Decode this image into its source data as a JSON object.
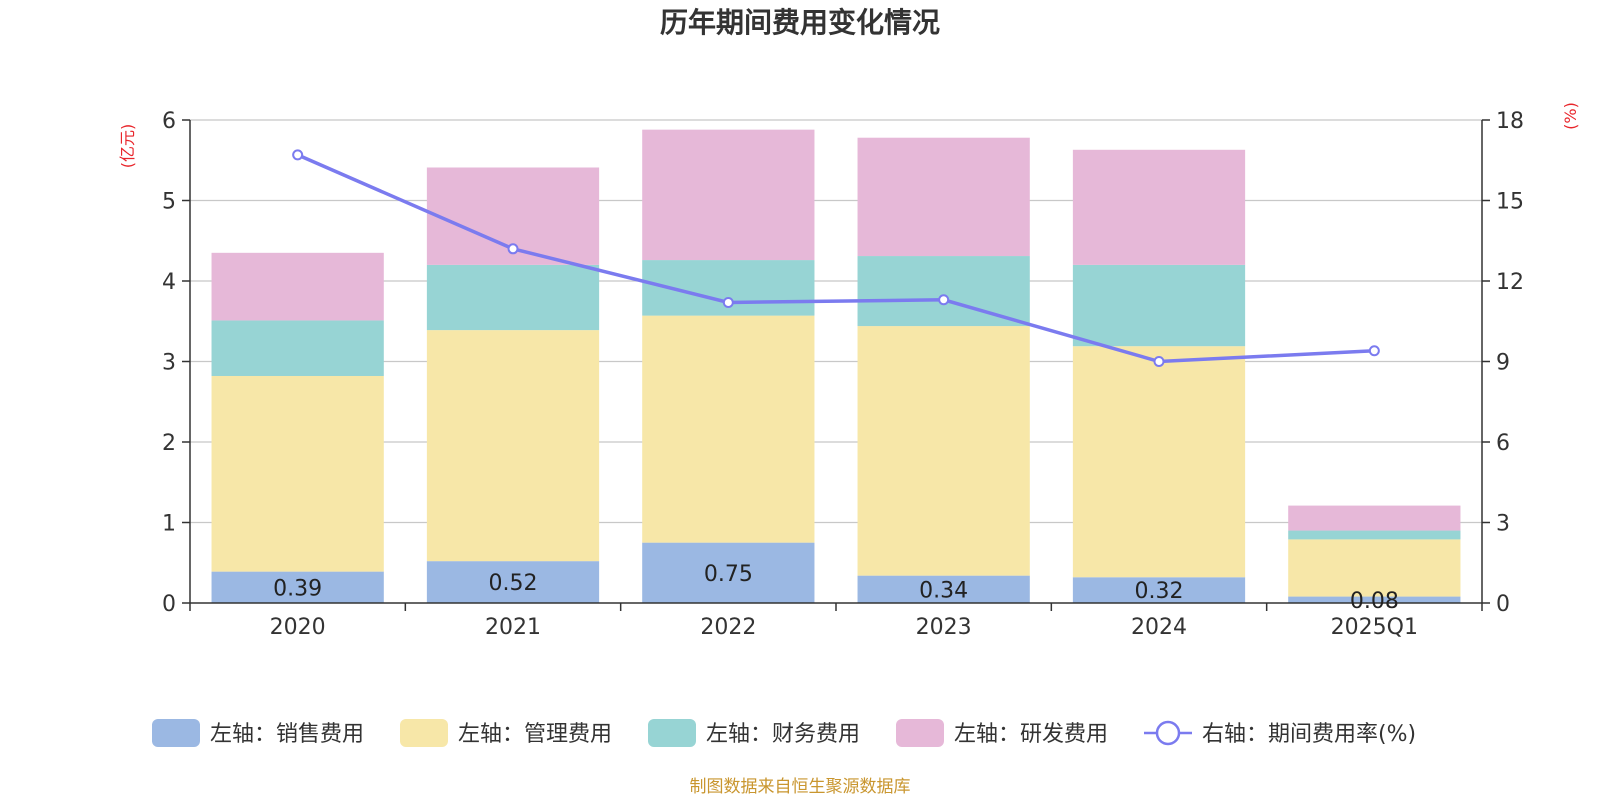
{
  "chart_data": {
    "type": "bar",
    "title": "历年期间费用变化情况",
    "left_unit": "(亿元)",
    "right_unit": "(%)",
    "categories": [
      "2020",
      "2021",
      "2022",
      "2023",
      "2024",
      "2025Q1"
    ],
    "ylim_left": [
      0,
      6
    ],
    "yticks_left": [
      0,
      1,
      2,
      3,
      4,
      5,
      6
    ],
    "ylim_right": [
      0,
      18
    ],
    "yticks_right": [
      0,
      3,
      6,
      9,
      12,
      15,
      18
    ],
    "stacked": true,
    "grid": true,
    "legend_position": "bottom",
    "series": [
      {
        "name": "左轴：销售费用",
        "axis": "left",
        "kind": "bar",
        "color": "#9bb8e3",
        "values": [
          0.39,
          0.52,
          0.75,
          0.34,
          0.32,
          0.08
        ],
        "labels": [
          "0.39",
          "0.52",
          "0.75",
          "0.34",
          "0.32",
          "0.08"
        ]
      },
      {
        "name": "左轴：管理费用",
        "axis": "left",
        "kind": "bar",
        "color": "#f7e7a8",
        "values": [
          2.43,
          2.87,
          2.82,
          3.1,
          2.87,
          0.71
        ]
      },
      {
        "name": "左轴：财务费用",
        "axis": "left",
        "kind": "bar",
        "color": "#97d4d4",
        "values": [
          0.69,
          0.81,
          0.69,
          0.87,
          1.01,
          0.11
        ]
      },
      {
        "name": "左轴：研发费用",
        "axis": "left",
        "kind": "bar",
        "color": "#e6b8d8",
        "values": [
          0.84,
          1.21,
          1.62,
          1.47,
          1.43,
          0.31
        ]
      },
      {
        "name": "右轴：期间费用率(%)",
        "axis": "right",
        "kind": "line",
        "color": "#7b7bef",
        "values": [
          16.7,
          13.2,
          11.2,
          11.3,
          9.0,
          9.4
        ]
      }
    ],
    "source": "制图数据来自恒生聚源数据库"
  }
}
